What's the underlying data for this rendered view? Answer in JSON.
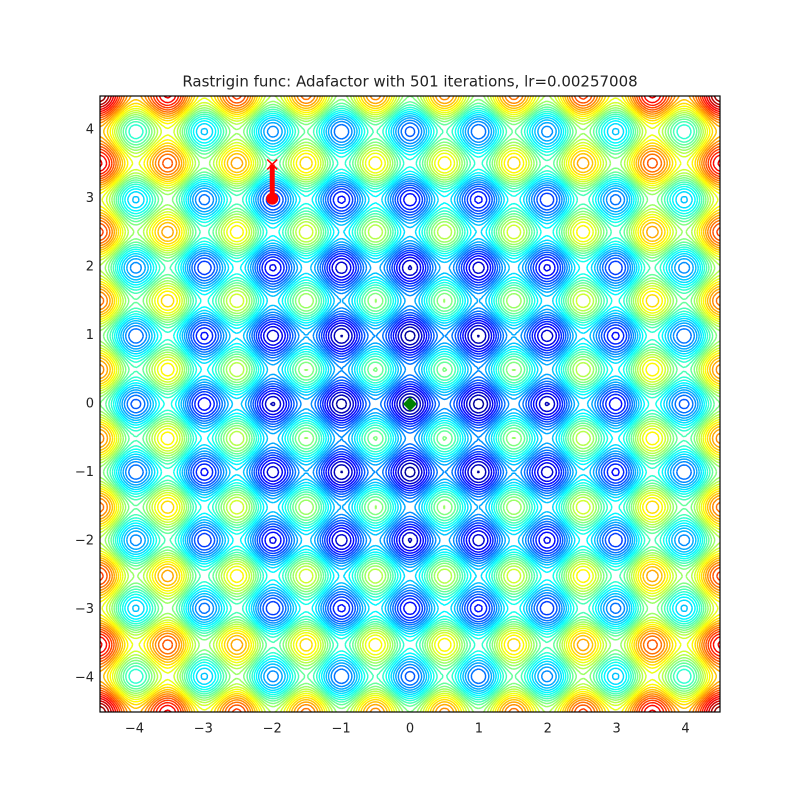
{
  "chart_data": {
    "type": "contour",
    "title": "Rastrigin func: Adafactor with 501 iterations, lr=0.00257008",
    "xlim": [
      -4.5,
      4.5
    ],
    "ylim": [
      -4.5,
      4.5
    ],
    "xticks": [
      {
        "value": -4,
        "label": "−4"
      },
      {
        "value": -3,
        "label": "−3"
      },
      {
        "value": -2,
        "label": "−2"
      },
      {
        "value": -1,
        "label": "−1"
      },
      0,
      1,
      2,
      3,
      4
    ],
    "yticks": [
      {
        "value": -4,
        "label": "−4"
      },
      {
        "value": -3,
        "label": "−3"
      },
      {
        "value": -2,
        "label": "−2"
      },
      {
        "value": -1,
        "label": "−1"
      },
      0,
      1,
      2,
      3,
      4
    ],
    "colormap": "jet",
    "path": {
      "x": [
        -2,
        -2,
        -2,
        -2,
        -2
      ],
      "y": [
        3.5,
        3.35,
        3.2,
        3.08,
        3.0
      ],
      "color": "#ff0000"
    },
    "minimum": {
      "x": 0,
      "y": 0,
      "color": "#008000"
    }
  }
}
